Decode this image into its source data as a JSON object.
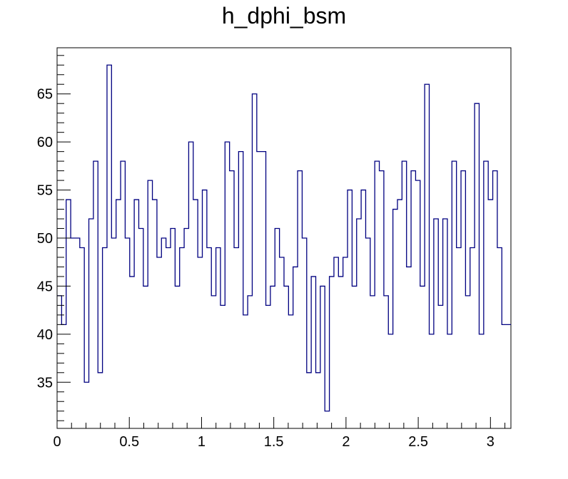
{
  "chart_data": {
    "type": "histogram",
    "title": "h_dphi_bsm",
    "xlabel": "",
    "ylabel": "",
    "xlim": [
      0,
      3.1416
    ],
    "ylim": [
      30.2,
      69.8
    ],
    "bins": 100,
    "x_ticks": [
      0,
      0.5,
      1,
      1.5,
      2,
      2.5,
      3
    ],
    "x_tick_labels": [
      "0",
      "0.5",
      "1",
      "1.5",
      "2",
      "2.5",
      "3"
    ],
    "y_ticks": [
      35,
      40,
      45,
      50,
      55,
      60,
      65
    ],
    "y_tick_labels": [
      "35",
      "40",
      "45",
      "50",
      "55",
      "60",
      "65"
    ],
    "values": [
      44,
      41,
      54,
      50,
      50,
      49,
      35,
      52,
      58,
      36,
      49,
      68,
      50,
      54,
      58,
      50,
      46,
      54,
      51,
      45,
      56,
      54,
      48,
      50,
      49,
      51,
      45,
      49,
      51,
      60,
      54,
      48,
      55,
      49,
      44,
      49,
      43,
      60,
      57,
      49,
      59,
      42,
      44,
      65,
      59,
      59,
      43,
      45,
      51,
      48,
      45,
      42,
      47,
      57,
      50,
      36,
      46,
      36,
      45,
      32,
      46,
      48,
      46,
      48,
      55,
      45,
      52,
      55,
      50,
      44,
      58,
      57,
      44,
      40,
      53,
      54,
      58,
      47,
      57,
      56,
      45,
      66,
      40,
      52,
      43,
      52,
      40,
      58,
      49,
      57,
      44,
      49,
      64,
      40,
      58,
      54,
      57,
      49,
      41,
      41
    ],
    "grid": false,
    "legend": "none",
    "line_color": "#000080",
    "axis_color": "#000000"
  }
}
